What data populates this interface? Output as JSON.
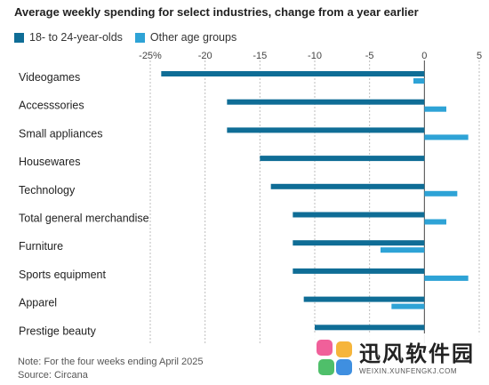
{
  "title": "Average weekly spending for select industries, change from a year earlier",
  "legend": [
    {
      "label": "18- to 24-year-olds",
      "color": "#0f6d96"
    },
    {
      "label": "Other age groups",
      "color": "#2ea3d6"
    }
  ],
  "note": {
    "line1": "Note: For the four weeks ending April 2025",
    "line2": "Source: Circana"
  },
  "watermark": {
    "text": "迅风软件园",
    "url": "WEIXIN.XUNFENGKJ.COM"
  },
  "chart_data": {
    "type": "bar",
    "orientation": "horizontal",
    "title": "Average weekly spending for select industries, change from a year earlier",
    "categories": [
      "Videogames",
      "Accesssories",
      "Small appliances",
      "Housewares",
      "Technology",
      "Total general merchandise",
      "Furniture",
      "Sports equipment",
      "Apparel",
      "Prestige beauty"
    ],
    "series": [
      {
        "name": "18- to 24-year-olds",
        "color": "#0f6d96",
        "values": [
          -24,
          -18,
          -18,
          -15,
          -14,
          -12,
          -12,
          -12,
          -11,
          -10
        ]
      },
      {
        "name": "Other age groups",
        "color": "#2ea3d6",
        "values": [
          -1,
          2,
          4,
          0,
          3,
          2,
          -4,
          4,
          -3,
          null
        ]
      }
    ],
    "xlim": [
      -25,
      5
    ],
    "ticks": [
      -25,
      -20,
      -15,
      -10,
      -5,
      0,
      5
    ],
    "tick_labels": [
      "-25%",
      "-20",
      "-15",
      "-10",
      "-5",
      "0",
      "5"
    ],
    "gridlines": true,
    "legend_position": "top-left"
  }
}
